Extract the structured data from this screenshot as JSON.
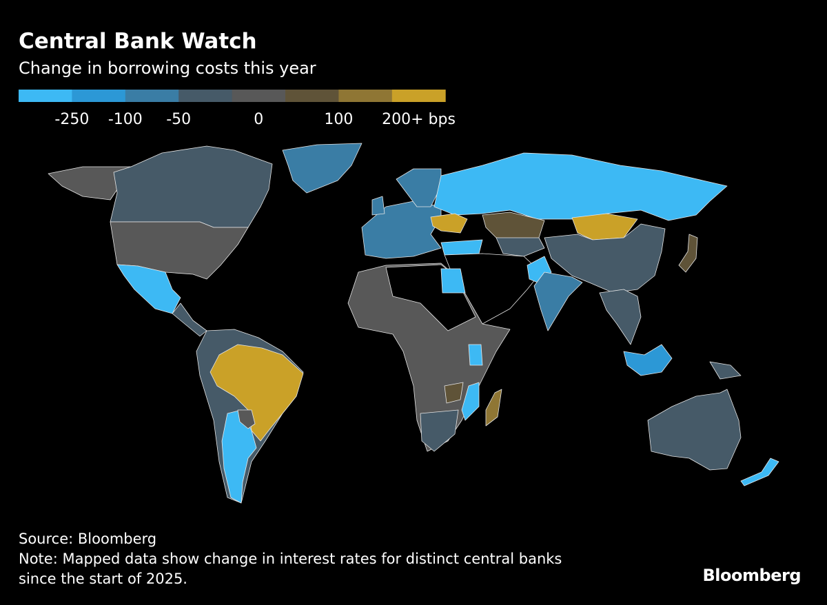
{
  "header": {
    "title": "Central Bank Watch",
    "subtitle": "Change in borrowing costs this year"
  },
  "legend": {
    "colors": [
      "#3db9f4",
      "#2c98d6",
      "#3a7da5",
      "#465a68",
      "#585858",
      "#5f5338",
      "#8f7634",
      "#caa128"
    ],
    "labels": [
      "-250",
      "-100",
      "-50",
      "0",
      "100",
      "200+ bps"
    ]
  },
  "footer": {
    "source": "Source: Bloomberg",
    "note": [
      "Note: Mapped data show change in interest rates for distinct central banks",
      "since the start of 2025."
    ]
  },
  "brand": "Bloomberg"
}
